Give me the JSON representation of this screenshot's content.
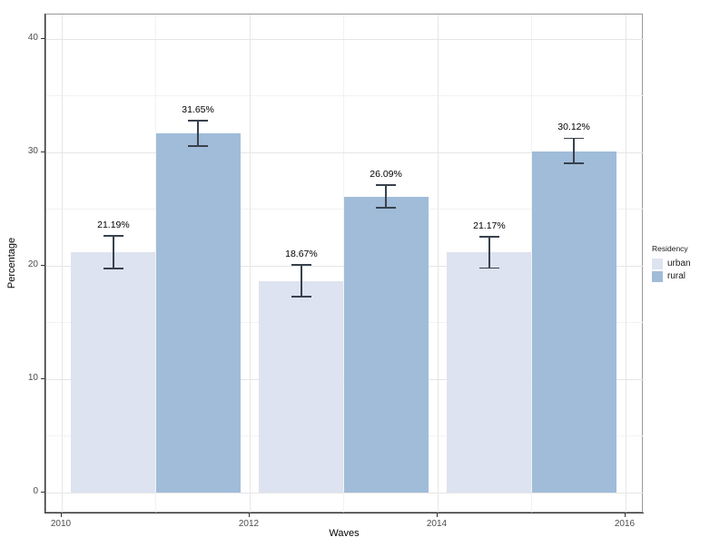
{
  "chart_data": {
    "type": "bar",
    "title": "",
    "xlabel": "Waves",
    "ylabel": "Percentage",
    "legend_title": "Residency",
    "legend_position": "right",
    "grid": true,
    "x_ticks": [
      2010,
      2012,
      2014,
      2016
    ],
    "x_minor_ticks": [
      2011,
      2013,
      2015
    ],
    "y_ticks": [
      0,
      10,
      20,
      30,
      40
    ],
    "y_minor_ticks": [
      5,
      15,
      25,
      35
    ],
    "ylim": [
      -1.8,
      42.2
    ],
    "xlim": [
      2009.84,
      2016.2
    ],
    "group_centers": [
      2011,
      2013,
      2015
    ],
    "bar_width_years": 0.9,
    "series": [
      {
        "name": "urban",
        "color": "#dde3f0",
        "values": [
          21.19,
          18.67,
          21.17
        ],
        "labels": [
          "21.19%",
          "18.67%",
          "21.17%"
        ],
        "error_upper": [
          22.65,
          20.1,
          22.55
        ],
        "error_lower": [
          19.75,
          17.3,
          19.8
        ]
      },
      {
        "name": "rural",
        "color": "#a0bcd9",
        "values": [
          31.65,
          26.09,
          30.12
        ],
        "labels": [
          "31.65%",
          "26.09%",
          "30.12%"
        ],
        "error_upper": [
          32.8,
          27.1,
          31.25
        ],
        "error_lower": [
          30.55,
          25.1,
          29.05
        ]
      }
    ],
    "errorbar_color": "#39414d",
    "panel_border_color": "#999999",
    "axis_line_color": "#2f2f2f"
  }
}
